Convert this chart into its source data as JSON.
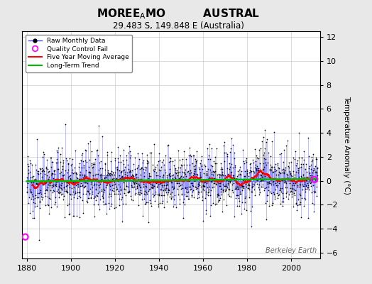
{
  "title_line1": "MOREE",
  "title_sub_A": "A",
  "title_line1_rest": "MO          AUSTRAL",
  "title_line2": "29.483 S, 149.848 E (Australia)",
  "xlabel_ticks": [
    1880,
    1900,
    1920,
    1940,
    1960,
    1980,
    2000
  ],
  "ylim": [
    -6.5,
    12.5
  ],
  "yticks": [
    -6,
    -4,
    -2,
    0,
    2,
    4,
    6,
    8,
    10,
    12
  ],
  "xlim": [
    1878,
    2013
  ],
  "ylabel": "Temperature Anomaly (°C)",
  "watermark": "Berkeley Earth",
  "background_color": "#e8e8e8",
  "plot_bg_color": "#ffffff",
  "raw_line_color": "#4444ff",
  "raw_marker_color": "#000000",
  "ma_color": "#ff0000",
  "trend_color": "#00bb00",
  "qc_color": "#ff00ff",
  "seed": 12345,
  "n_months": 1584,
  "start_year": 1880,
  "end_year": 2011.9
}
